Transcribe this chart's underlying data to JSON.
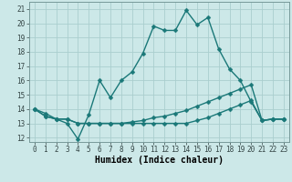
{
  "title": "",
  "xlabel": "Humidex (Indice chaleur)",
  "background_color": "#cce8e8",
  "grid_color": "#aacece",
  "line_color": "#1a7878",
  "xlim": [
    -0.5,
    23.5
  ],
  "ylim": [
    11.7,
    21.5
  ],
  "yticks": [
    12,
    13,
    14,
    15,
    16,
    17,
    18,
    19,
    20,
    21
  ],
  "xticks": [
    0,
    1,
    2,
    3,
    4,
    5,
    6,
    7,
    8,
    9,
    10,
    11,
    12,
    13,
    14,
    15,
    16,
    17,
    18,
    19,
    20,
    21,
    22,
    23
  ],
  "series": [
    [
      14.0,
      13.7,
      13.3,
      13.0,
      11.9,
      13.6,
      16.0,
      14.8,
      16.0,
      16.6,
      17.9,
      19.8,
      19.5,
      19.5,
      20.9,
      19.9,
      20.4,
      18.2,
      16.8,
      16.0,
      14.5,
      13.2,
      13.3,
      13.3
    ],
    [
      14.0,
      13.5,
      13.3,
      13.3,
      13.0,
      13.0,
      13.0,
      13.0,
      13.0,
      13.0,
      13.0,
      13.0,
      13.0,
      13.0,
      13.0,
      13.2,
      13.4,
      13.7,
      14.0,
      14.3,
      14.6,
      13.2,
      13.3,
      13.3
    ],
    [
      14.0,
      13.5,
      13.3,
      13.3,
      13.0,
      13.0,
      13.0,
      13.0,
      13.0,
      13.1,
      13.2,
      13.4,
      13.5,
      13.7,
      13.9,
      14.2,
      14.5,
      14.8,
      15.1,
      15.4,
      15.7,
      13.2,
      13.3,
      13.3
    ]
  ],
  "markersize": 2.5,
  "linewidth": 1.0,
  "font_family": "monospace",
  "tick_fontsize": 5.5,
  "xlabel_fontsize": 7.0
}
